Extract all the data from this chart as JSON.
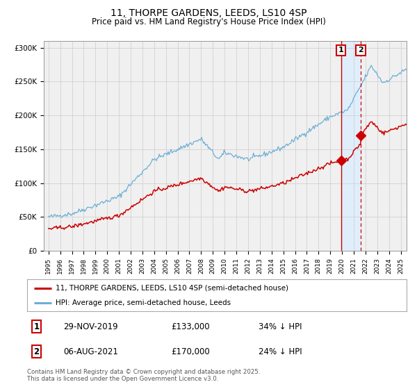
{
  "title": "11, THORPE GARDENS, LEEDS, LS10 4SP",
  "subtitle": "Price paid vs. HM Land Registry's House Price Index (HPI)",
  "title_fontsize": 10,
  "subtitle_fontsize": 8.5,
  "hpi_color": "#6baed6",
  "property_color": "#cc0000",
  "background_color": "#ffffff",
  "plot_bg_color": "#f0f0f0",
  "highlight_bg_color": "#ddeeff",
  "ylim": [
    0,
    310000
  ],
  "yticks": [
    0,
    50000,
    100000,
    150000,
    200000,
    250000,
    300000
  ],
  "ytick_labels": [
    "£0",
    "£50K",
    "£100K",
    "£150K",
    "£200K",
    "£250K",
    "£300K"
  ],
  "grid_color": "#cccccc",
  "transaction1_date": "29-NOV-2019",
  "transaction1_price": 133000,
  "transaction1_hpi_diff": "34% ↓ HPI",
  "transaction1_x": 2019.91,
  "transaction2_date": "06-AUG-2021",
  "transaction2_price": 170000,
  "transaction2_hpi_diff": "24% ↓ HPI",
  "transaction2_x": 2021.6,
  "legend_label1": "11, THORPE GARDENS, LEEDS, LS10 4SP (semi-detached house)",
  "legend_label2": "HPI: Average price, semi-detached house, Leeds",
  "footer_text": "Contains HM Land Registry data © Crown copyright and database right 2025.\nThis data is licensed under the Open Government Licence v3.0.",
  "marker_color": "#cc0000",
  "marker_size": 7,
  "vline_color": "#cc0000",
  "annotation_box_color": "#cc0000",
  "year_start": 1995,
  "year_end": 2025
}
